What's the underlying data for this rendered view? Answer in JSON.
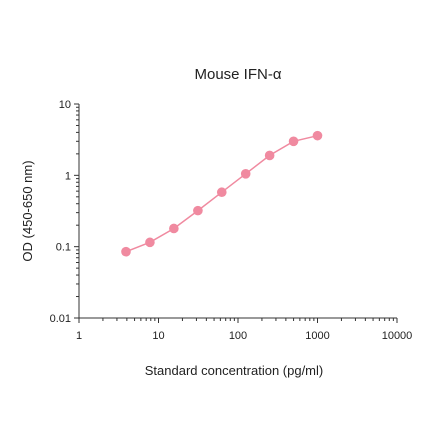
{
  "chart_data": {
    "type": "scatter",
    "title": "Mouse IFN-α",
    "xlabel": "Standard concentration (pg/ml)",
    "ylabel": "OD (450-650 nm)",
    "xscale": "log",
    "yscale": "log",
    "xlim": [
      1,
      10000
    ],
    "ylim": [
      0.01,
      10
    ],
    "x_tick_labels": [
      "1",
      "10",
      "100",
      "1000",
      "10000"
    ],
    "y_tick_labels": [
      "0.01",
      "0.1",
      "1",
      "10"
    ],
    "grid": false,
    "legend": "none",
    "series": [
      {
        "color": "#f08aa0",
        "marker": "circle",
        "connected": true,
        "points": [
          {
            "x": 3.9,
            "y": 0.085
          },
          {
            "x": 7.8,
            "y": 0.115
          },
          {
            "x": 15.6,
            "y": 0.18
          },
          {
            "x": 31.3,
            "y": 0.32
          },
          {
            "x": 62.5,
            "y": 0.58
          },
          {
            "x": 125,
            "y": 1.05
          },
          {
            "x": 250,
            "y": 1.9
          },
          {
            "x": 500,
            "y": 3.0
          },
          {
            "x": 1000,
            "y": 3.6
          }
        ]
      }
    ]
  }
}
